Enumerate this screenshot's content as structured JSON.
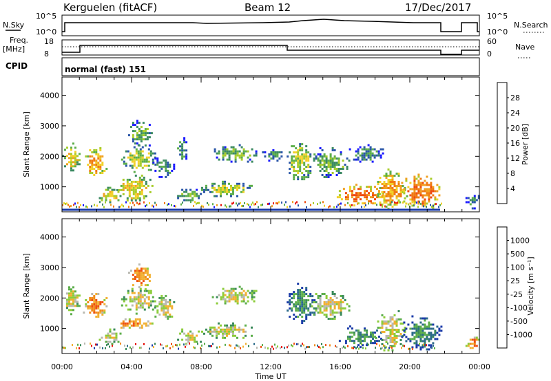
{
  "header": {
    "station": "Kerguelen (fitACF)",
    "beam": "Beam 12",
    "date": "17/Dec/2017"
  },
  "top_panels": {
    "nsky_label": "N.Sky",
    "nsky_ticks": [
      "10^5",
      "10^0"
    ],
    "nsearch_label": "N.Search",
    "nsearch_ticks": [
      "10^5",
      "10^0"
    ],
    "freq_label_1": "Freq.",
    "freq_label_2": "[MHz]",
    "freq_ticks": [
      "18",
      "8"
    ],
    "nave_label": "Nave",
    "nave_ticks": [
      "60",
      "0"
    ],
    "cpid_label": "CPID",
    "cpid_text": "normal (fast) 151"
  },
  "chart_data": [
    {
      "type": "heatmap",
      "title": "",
      "ylabel": "Slant Range [km]",
      "xlabel": "",
      "x_ticks": [
        "00:00",
        "04:00",
        "08:00",
        "12:00",
        "16:00",
        "20:00",
        "00:00"
      ],
      "y_ticks": [
        "1000",
        "2000",
        "3000",
        "4000"
      ],
      "ylim": [
        180,
        4600
      ],
      "xlim_hours": [
        0,
        24
      ],
      "colorbar": {
        "label": "Power [dB]",
        "ticks": [
          "4",
          "8",
          "12",
          "16",
          "20",
          "24",
          "28"
        ],
        "colors": [
          "#1a1aff",
          "#2a56a8",
          "#3c8a62",
          "#5cae4a",
          "#a8cc2a",
          "#f2d12a",
          "#f0a020",
          "#f07a12",
          "#ee4a10",
          "#e8140c"
        ]
      },
      "echo_regions": [
        {
          "t0": 0.0,
          "t1": 1.0,
          "r0": 1500,
          "r1": 2450,
          "level": 5
        },
        {
          "t0": 1.2,
          "t1": 2.6,
          "r0": 1300,
          "r1": 2300,
          "level": 6
        },
        {
          "t0": 2.0,
          "t1": 3.4,
          "r0": 500,
          "r1": 1000,
          "level": 5
        },
        {
          "t0": 3.0,
          "t1": 5.2,
          "r0": 500,
          "r1": 1400,
          "level": 5
        },
        {
          "t0": 3.4,
          "t1": 5.4,
          "r0": 1500,
          "r1": 2400,
          "level": 4
        },
        {
          "t0": 3.8,
          "t1": 5.2,
          "r0": 2300,
          "r1": 3200,
          "level": 3
        },
        {
          "t0": 5.2,
          "t1": 6.5,
          "r0": 1300,
          "r1": 2100,
          "level": 2
        },
        {
          "t0": 6.5,
          "t1": 8.0,
          "r0": 500,
          "r1": 1000,
          "level": 3
        },
        {
          "t0": 6.5,
          "t1": 7.2,
          "r0": 1800,
          "r1": 2700,
          "level": 2
        },
        {
          "t0": 8.0,
          "t1": 11.0,
          "r0": 700,
          "r1": 1200,
          "level": 4
        },
        {
          "t0": 8.5,
          "t1": 11.2,
          "r0": 1800,
          "r1": 2400,
          "level": 3
        },
        {
          "t0": 11.5,
          "t1": 12.8,
          "r0": 1800,
          "r1": 2300,
          "level": 2
        },
        {
          "t0": 12.8,
          "t1": 14.5,
          "r0": 1200,
          "r1": 2500,
          "level": 4
        },
        {
          "t0": 14.2,
          "t1": 16.5,
          "r0": 1300,
          "r1": 2300,
          "level": 3
        },
        {
          "t0": 16.5,
          "t1": 18.5,
          "r0": 1800,
          "r1": 2400,
          "level": 2
        },
        {
          "t0": 15.8,
          "t1": 18.5,
          "r0": 400,
          "r1": 1100,
          "level": 7
        },
        {
          "t0": 18.0,
          "t1": 19.8,
          "r0": 300,
          "r1": 1600,
          "level": 6
        },
        {
          "t0": 19.5,
          "t1": 21.8,
          "r0": 300,
          "r1": 1500,
          "level": 7
        },
        {
          "t0": 23.2,
          "t1": 24.0,
          "r0": 300,
          "r1": 800,
          "level": 2
        }
      ]
    },
    {
      "type": "heatmap",
      "title": "",
      "ylabel": "Slant Range [km]",
      "xlabel": "Time UT",
      "x_ticks": [
        "00:00",
        "04:00",
        "08:00",
        "12:00",
        "16:00",
        "20:00",
        "00:00"
      ],
      "y_ticks": [
        "1000",
        "2000",
        "3000",
        "4000"
      ],
      "ylim": [
        180,
        4600
      ],
      "xlim_hours": [
        0,
        24
      ],
      "colorbar": {
        "label": "Velocity [m s⁻¹]",
        "ticks": [
          "1000",
          "500",
          "100",
          "25",
          "-25",
          "-100",
          "-500",
          "-1000"
        ],
        "colors": [
          "#1a3aa8",
          "#2a6a8a",
          "#3a8a5a",
          "#5cae4a",
          "#8ccc3a",
          "#b8b8b0",
          "#f2b030",
          "#f08a1a",
          "#ee5010",
          "#e8140c"
        ]
      },
      "echo_regions": [
        {
          "t0": 0.0,
          "t1": 1.0,
          "r0": 1500,
          "r1": 2450,
          "level": 5
        },
        {
          "t0": 1.2,
          "t1": 2.6,
          "r0": 1300,
          "r1": 2300,
          "level": 7
        },
        {
          "t0": 2.0,
          "t1": 3.4,
          "r0": 500,
          "r1": 1000,
          "level": 5
        },
        {
          "t0": 3.0,
          "t1": 5.2,
          "r0": 1000,
          "r1": 1400,
          "level": 7
        },
        {
          "t0": 3.4,
          "t1": 5.4,
          "r0": 1500,
          "r1": 2400,
          "level": 5
        },
        {
          "t0": 3.8,
          "t1": 5.2,
          "r0": 2300,
          "r1": 3200,
          "level": 7
        },
        {
          "t0": 5.2,
          "t1": 6.5,
          "r0": 1300,
          "r1": 2100,
          "level": 5
        },
        {
          "t0": 6.5,
          "t1": 8.0,
          "r0": 500,
          "r1": 1000,
          "level": 5
        },
        {
          "t0": 8.0,
          "t1": 11.0,
          "r0": 700,
          "r1": 1200,
          "level": 5
        },
        {
          "t0": 8.5,
          "t1": 11.2,
          "r0": 1800,
          "r1": 2400,
          "level": 5
        },
        {
          "t0": 12.8,
          "t1": 14.5,
          "r0": 1200,
          "r1": 2500,
          "level": 2
        },
        {
          "t0": 14.2,
          "t1": 16.5,
          "r0": 1300,
          "r1": 2300,
          "level": 5
        },
        {
          "t0": 15.8,
          "t1": 18.5,
          "r0": 400,
          "r1": 1100,
          "level": 2
        },
        {
          "t0": 18.0,
          "t1": 19.8,
          "r0": 300,
          "r1": 1600,
          "level": 5
        },
        {
          "t0": 19.5,
          "t1": 21.8,
          "r0": 300,
          "r1": 1500,
          "level": 2
        },
        {
          "t0": 23.2,
          "t1": 24.0,
          "r0": 300,
          "r1": 800,
          "level": 7
        }
      ]
    }
  ]
}
